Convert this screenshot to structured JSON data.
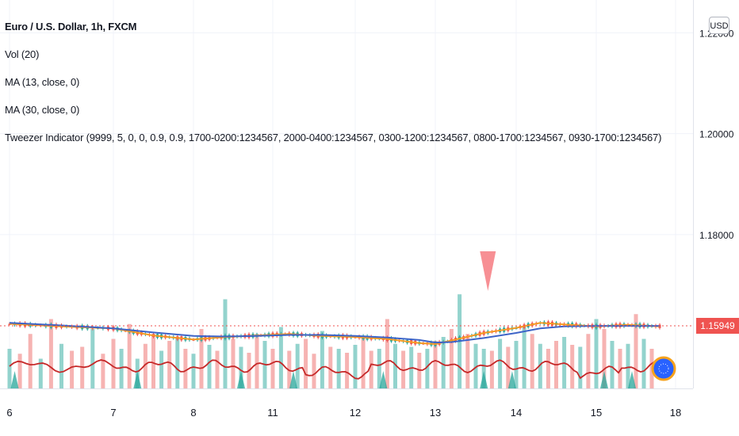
{
  "legend": {
    "title": "Euro / U.S. Dollar, 1h, FXCM",
    "vol": "Vol (20)",
    "ma13": "MA (13, close, 0)",
    "ma30": "MA (30, close, 0)",
    "tweezer": "Tweezer Indicator (9999, 5, 0, 0, 0.9, 0.9, 1700-0200:1234567, 2000-0400:1234567, 0300-1200:1234567, 0800-1700:1234567, 0930-1700:1234567)"
  },
  "currency_button": "USD",
  "last_price": "1.15949",
  "colors": {
    "up": "#26a69a",
    "down": "#ef5350",
    "vol_up": "#80cbc4",
    "vol_down": "#f4a6a4",
    "ma13": "#f59b23",
    "ma30": "#3d64c8",
    "tweezer_line": "#c62828",
    "grid": "#f0f3fa",
    "marker": "#f78f94",
    "price_tag": "#ef5350"
  },
  "chart_data": {
    "type": "line",
    "x_ticks": [
      "6",
      "7",
      "8",
      "11",
      "12",
      "13",
      "14",
      "15",
      "18"
    ],
    "y_ticks": [
      "1.22000",
      "1.20000",
      "1.18000"
    ],
    "ylim": [
      1.1495,
      1.2265
    ],
    "grid": true,
    "series": [
      {
        "name": "MA (13, close, 0)",
        "x": [
          0,
          0.5,
          1,
          1.5,
          2,
          2.4,
          2.8,
          3.2,
          3.6,
          4,
          4.4,
          4.8,
          5,
          5.2,
          5.6,
          6,
          6.3,
          6.6,
          7,
          7.4,
          7.8
        ],
        "values": [
          1.1623,
          1.1618,
          1.1614,
          1.16,
          1.1592,
          1.1597,
          1.16,
          1.1603,
          1.1599,
          1.1597,
          1.1593,
          1.1585,
          1.1583,
          1.159,
          1.1605,
          1.1615,
          1.1625,
          1.1622,
          1.1618,
          1.1621,
          1.1618
        ]
      },
      {
        "name": "MA (30, close, 0)",
        "x": [
          0,
          0.5,
          1,
          1.5,
          2,
          2.4,
          2.8,
          3.2,
          3.6,
          4,
          4.4,
          4.8,
          5,
          5.2,
          5.6,
          6,
          6.3,
          6.6,
          7,
          7.4,
          7.8
        ],
        "values": [
          1.1625,
          1.162,
          1.1614,
          1.1606,
          1.1599,
          1.1598,
          1.1599,
          1.1601,
          1.1601,
          1.1599,
          1.1596,
          1.1591,
          1.1586,
          1.1587,
          1.1595,
          1.1605,
          1.1614,
          1.1618,
          1.1619,
          1.1619,
          1.1619
        ]
      }
    ],
    "volume": {
      "x": [
        0,
        0.1,
        0.2,
        0.3,
        0.4,
        0.5,
        0.6,
        0.7,
        0.8,
        0.9,
        1,
        1.1,
        1.2,
        1.3,
        1.4,
        1.5,
        1.6,
        1.7,
        1.8,
        1.9,
        2,
        2.1,
        2.2,
        2.3,
        2.4,
        2.5,
        2.6,
        2.7,
        2.8,
        2.9,
        3,
        3.1,
        3.2,
        3.3,
        3.4,
        3.5,
        3.6,
        3.7,
        3.8,
        3.9,
        4,
        4.1,
        4.2,
        4.3,
        4.4,
        4.5,
        4.6,
        4.7,
        4.8,
        4.9,
        5,
        5.1,
        5.2,
        5.3,
        5.4,
        5.5,
        5.6,
        5.7,
        5.8,
        5.9,
        6,
        6.1,
        6.2,
        6.3,
        6.4,
        6.5,
        6.6,
        6.7,
        6.8,
        6.9,
        7,
        7.1,
        7.2,
        7.3,
        7.4,
        7.5,
        7.6,
        7.7
      ],
      "values": [
        40,
        35,
        55,
        30,
        70,
        45,
        38,
        42,
        60,
        35,
        50,
        40,
        65,
        30,
        45,
        55,
        38,
        48,
        52,
        40,
        35,
        60,
        44,
        38,
        90,
        50,
        42,
        36,
        55,
        48,
        40,
        62,
        38,
        45,
        50,
        35,
        58,
        42,
        40,
        36,
        44,
        52,
        38,
        40,
        70,
        45,
        38,
        42,
        36,
        40,
        48,
        52,
        60,
        95,
        55,
        45,
        40,
        38,
        50,
        42,
        48,
        62,
        55,
        45,
        40,
        48,
        52,
        44,
        42,
        55,
        70,
        60,
        48,
        40,
        45,
        75,
        50,
        40
      ],
      "direction": [
        1,
        0,
        0,
        1,
        0,
        1,
        0,
        0,
        1,
        0,
        0,
        1,
        0,
        1,
        0,
        0,
        1,
        0,
        1,
        0,
        1,
        0,
        1,
        0,
        1,
        0,
        1,
        0,
        0,
        1,
        0,
        1,
        0,
        1,
        0,
        0,
        1,
        0,
        1,
        0,
        1,
        0,
        0,
        1,
        0,
        1,
        0,
        1,
        0,
        1,
        0,
        1,
        0,
        1,
        0,
        1,
        1,
        0,
        1,
        0,
        1,
        1,
        0,
        1,
        0,
        0,
        1,
        0,
        1,
        0,
        1,
        0,
        1,
        0,
        1,
        0,
        1,
        0
      ]
    },
    "tweezer_marker": {
      "x": 5.65,
      "label": ""
    }
  }
}
